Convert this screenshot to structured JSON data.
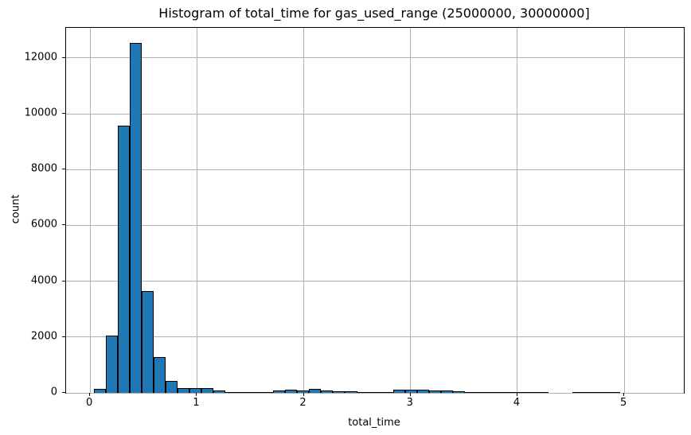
{
  "title": "Histogram of total_time for gas_used_range (25000000, 30000000]",
  "chart_data": {
    "type": "bar",
    "subtype": "histogram",
    "title": "Histogram of total_time for gas_used_range (25000000, 30000000]",
    "xlabel": "total_time",
    "ylabel": "count",
    "bin_start": 0.035,
    "bin_width": 0.112,
    "counts": [
      150,
      2050,
      9570,
      12550,
      3650,
      1280,
      430,
      175,
      160,
      170,
      95,
      40,
      35,
      38,
      40,
      78,
      115,
      95,
      155,
      76,
      55,
      45,
      28,
      12,
      10,
      105,
      115,
      108,
      85,
      85,
      66,
      15,
      12,
      12,
      15,
      22,
      22,
      15,
      0,
      0,
      15,
      20,
      20,
      10,
      0
    ],
    "xticks": [
      0,
      1,
      2,
      3,
      4,
      5
    ],
    "yticks": [
      0,
      2000,
      4000,
      6000,
      8000,
      10000,
      12000
    ],
    "xlim": [
      -0.225,
      5.558
    ],
    "ylim": [
      0,
      13080
    ],
    "grid": true,
    "legend": "none",
    "bar_color": "#1f77b4",
    "bar_edge_color": "#000000",
    "grid_color": "#b0b0b0",
    "axis_color": "#000000"
  }
}
